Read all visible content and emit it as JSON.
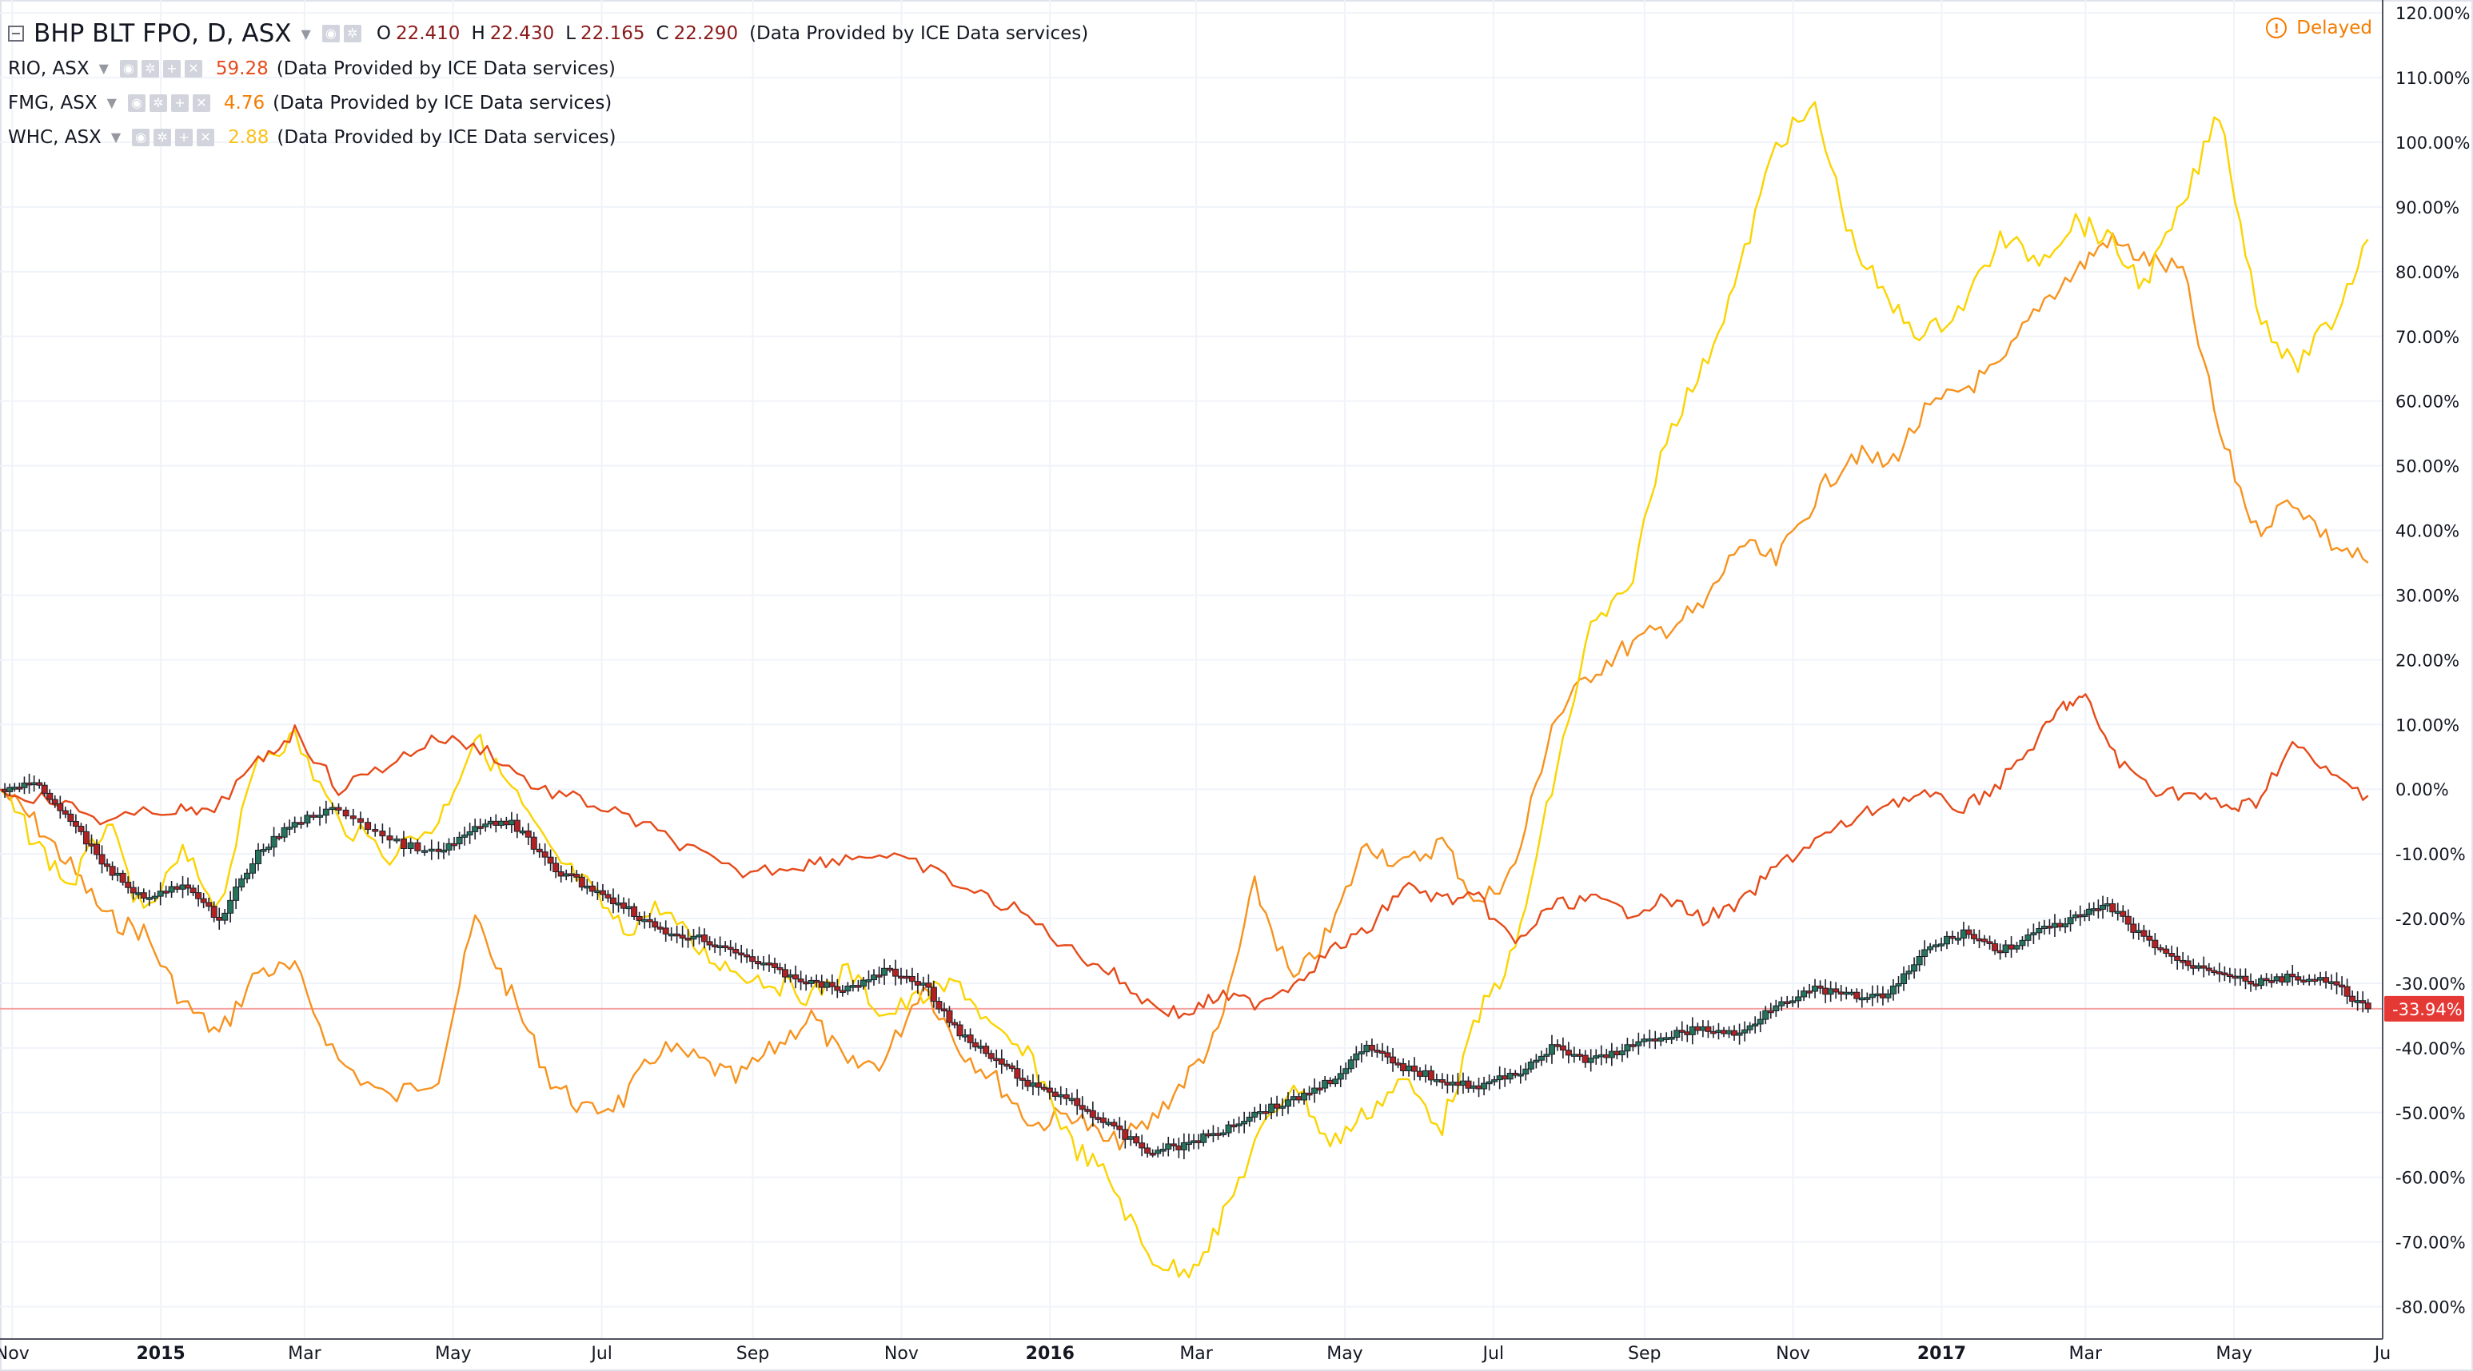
{
  "legend": {
    "main": {
      "title": "BHP BLT FPO, D, ASX",
      "o_label": "O",
      "o": "22.410",
      "h_label": "H",
      "h": "22.430",
      "l_label": "L",
      "l": "22.165",
      "c_label": "C",
      "c": "22.290",
      "source": "(Data Provided by ICE Data services)"
    },
    "rows": [
      {
        "symbol": "RIO, ASX",
        "value": "59.28",
        "color": "#e64a19",
        "source": "(Data Provided by ICE Data services)"
      },
      {
        "symbol": "FMG, ASX",
        "value": "4.76",
        "color": "#f57c00",
        "source": "(Data Provided by ICE Data services)"
      },
      {
        "symbol": "WHC, ASX",
        "value": "2.88",
        "color": "#f9c21a",
        "source": "(Data Provided by ICE Data services)"
      }
    ]
  },
  "delayed_label": "Delayed",
  "price_label": "-33.94%",
  "colors": {
    "rio": "#e64a19",
    "fmg": "#f7931e",
    "whc": "#fbd400",
    "up": "#26735b",
    "down": "#b22222",
    "price_line": "#f4a0a0"
  },
  "chart_data": {
    "type": "line",
    "ylim": [
      -85,
      122
    ],
    "xlim": [
      "2014-10-27",
      "2017-07-01"
    ],
    "y_ticks": [
      "120.00%",
      "110.00%",
      "100.00%",
      "90.00%",
      "80.00%",
      "70.00%",
      "60.00%",
      "50.00%",
      "40.00%",
      "30.00%",
      "20.00%",
      "10.00%",
      "0.00%",
      "-10.00%",
      "-20.00%",
      "-30.00%",
      "-40.00%",
      "-50.00%",
      "-60.00%",
      "-70.00%",
      "-80.00%"
    ],
    "y_tick_values": [
      120,
      110,
      100,
      90,
      80,
      70,
      60,
      50,
      40,
      30,
      20,
      10,
      0,
      -10,
      -20,
      -30,
      -40,
      -50,
      -60,
      -70,
      -80
    ],
    "x_ticks": [
      {
        "label": "Nov",
        "date": "2014-11-01",
        "bold": false
      },
      {
        "label": "2015",
        "date": "2015-01-01",
        "bold": true
      },
      {
        "label": "Mar",
        "date": "2015-03-01",
        "bold": false
      },
      {
        "label": "May",
        "date": "2015-05-01",
        "bold": false
      },
      {
        "label": "Jul",
        "date": "2015-07-01",
        "bold": false
      },
      {
        "label": "Sep",
        "date": "2015-09-01",
        "bold": false
      },
      {
        "label": "Nov",
        "date": "2015-11-01",
        "bold": false
      },
      {
        "label": "2016",
        "date": "2016-01-01",
        "bold": true
      },
      {
        "label": "Mar",
        "date": "2016-03-01",
        "bold": false
      },
      {
        "label": "May",
        "date": "2016-05-01",
        "bold": false
      },
      {
        "label": "Jul",
        "date": "2016-07-01",
        "bold": false
      },
      {
        "label": "Sep",
        "date": "2016-09-01",
        "bold": false
      },
      {
        "label": "Nov",
        "date": "2016-11-01",
        "bold": false
      },
      {
        "label": "2017",
        "date": "2017-01-01",
        "bold": true
      },
      {
        "label": "Mar",
        "date": "2017-03-01",
        "bold": false
      },
      {
        "label": "May",
        "date": "2017-05-01",
        "bold": false
      },
      {
        "label": "Ju",
        "date": "2017-07-01",
        "bold": false
      }
    ],
    "last_value": -33.94,
    "series": [
      {
        "name": "RIO, ASX",
        "key": "rio",
        "x": [
          "2014-10-27",
          "2014-11-20",
          "2014-12-10",
          "2015-01-05",
          "2015-01-20",
          "2015-02-10",
          "2015-02-25",
          "2015-03-15",
          "2015-04-05",
          "2015-04-25",
          "2015-05-15",
          "2015-06-05",
          "2015-06-25",
          "2015-07-15",
          "2015-08-05",
          "2015-08-25",
          "2015-09-15",
          "2015-10-01",
          "2015-10-20",
          "2015-11-10",
          "2015-12-01",
          "2015-12-20",
          "2016-01-10",
          "2016-01-25",
          "2016-02-10",
          "2016-02-25",
          "2016-03-10",
          "2016-03-25",
          "2016-04-10",
          "2016-04-25",
          "2016-05-10",
          "2016-05-25",
          "2016-06-10",
          "2016-06-25",
          "2016-07-10",
          "2016-07-25",
          "2016-08-10",
          "2016-08-25",
          "2016-09-10",
          "2016-09-25",
          "2016-10-10",
          "2016-10-25",
          "2016-11-10",
          "2016-11-25",
          "2016-12-10",
          "2016-12-25",
          "2017-01-10",
          "2017-01-25",
          "2017-02-10",
          "2017-02-20",
          "2017-03-01",
          "2017-03-15",
          "2017-03-30",
          "2017-04-15",
          "2017-04-30",
          "2017-05-10",
          "2017-05-25",
          "2017-06-10",
          "2017-06-25"
        ],
        "y": [
          0,
          -2,
          -5,
          -3,
          -4,
          4,
          9,
          0,
          4,
          8,
          6,
          0,
          -2,
          -5,
          -9,
          -13,
          -12,
          -11,
          -10,
          -12,
          -16,
          -19,
          -25,
          -28,
          -33,
          -35,
          -32,
          -33,
          -30,
          -25,
          -22,
          -15,
          -17,
          -17,
          -24,
          -18,
          -17,
          -19,
          -17,
          -20,
          -18,
          -12,
          -8,
          -5,
          -2,
          -1,
          -3,
          1,
          8,
          13,
          14,
          4,
          0,
          -1,
          -3,
          -2,
          7,
          2,
          -1
        ]
      },
      {
        "name": "FMG, ASX",
        "key": "fmg",
        "x": [
          "2014-10-27",
          "2014-11-10",
          "2014-11-25",
          "2014-12-10",
          "2014-12-25",
          "2015-01-10",
          "2015-01-25",
          "2015-02-10",
          "2015-02-25",
          "2015-03-15",
          "2015-04-05",
          "2015-04-25",
          "2015-05-10",
          "2015-05-25",
          "2015-06-10",
          "2015-06-25",
          "2015-07-10",
          "2015-07-25",
          "2015-08-10",
          "2015-08-25",
          "2015-09-10",
          "2015-09-25",
          "2015-10-10",
          "2015-10-25",
          "2015-11-10",
          "2015-11-25",
          "2015-12-10",
          "2015-12-25",
          "2016-01-10",
          "2016-01-25",
          "2016-02-10",
          "2016-02-25",
          "2016-03-10",
          "2016-03-25",
          "2016-04-10",
          "2016-04-25",
          "2016-05-10",
          "2016-05-25",
          "2016-06-10",
          "2016-06-25",
          "2016-07-10",
          "2016-07-25",
          "2016-08-10",
          "2016-08-25",
          "2016-09-10",
          "2016-09-25",
          "2016-10-10",
          "2016-10-25",
          "2016-11-10",
          "2016-11-25",
          "2016-12-10",
          "2016-12-25",
          "2017-01-10",
          "2017-01-25",
          "2017-02-10",
          "2017-02-25",
          "2017-03-10",
          "2017-03-25",
          "2017-04-10",
          "2017-04-25",
          "2017-05-10",
          "2017-05-25",
          "2017-06-10",
          "2017-06-25"
        ],
        "y": [
          0,
          -5,
          -12,
          -20,
          -22,
          -33,
          -38,
          -28,
          -28,
          -42,
          -48,
          -44,
          -20,
          -32,
          -45,
          -50,
          -48,
          -40,
          -42,
          -45,
          -40,
          -35,
          -43,
          -42,
          -30,
          -40,
          -45,
          -52,
          -50,
          -55,
          -52,
          -45,
          -38,
          -15,
          -30,
          -22,
          -8,
          -12,
          -8,
          -18,
          -12,
          10,
          18,
          22,
          25,
          28,
          38,
          35,
          45,
          52,
          50,
          58,
          62,
          65,
          75,
          80,
          85,
          82,
          80,
          55,
          40,
          45,
          38,
          35
        ]
      },
      {
        "name": "WHC, ASX",
        "key": "whc",
        "x": [
          "2014-10-27",
          "2014-11-10",
          "2014-11-25",
          "2014-12-10",
          "2014-12-25",
          "2015-01-10",
          "2015-01-25",
          "2015-02-10",
          "2015-02-25",
          "2015-03-15",
          "2015-04-05",
          "2015-04-25",
          "2015-05-10",
          "2015-05-25",
          "2015-06-10",
          "2015-06-25",
          "2015-07-10",
          "2015-07-25",
          "2015-08-10",
          "2015-08-25",
          "2015-09-10",
          "2015-09-25",
          "2015-10-10",
          "2015-10-25",
          "2015-11-10",
          "2015-11-25",
          "2015-12-10",
          "2015-12-25",
          "2016-01-10",
          "2016-01-25",
          "2016-02-10",
          "2016-02-25",
          "2016-03-10",
          "2016-03-25",
          "2016-04-10",
          "2016-04-25",
          "2016-05-10",
          "2016-05-25",
          "2016-06-10",
          "2016-06-25",
          "2016-07-10",
          "2016-07-25",
          "2016-08-10",
          "2016-08-25",
          "2016-09-10",
          "2016-09-25",
          "2016-10-10",
          "2016-10-25",
          "2016-11-10",
          "2016-11-25",
          "2016-12-10",
          "2016-12-25",
          "2017-01-10",
          "2017-01-25",
          "2017-02-10",
          "2017-02-25",
          "2017-03-10",
          "2017-03-25",
          "2017-04-10",
          "2017-04-25",
          "2017-05-10",
          "2017-05-25",
          "2017-06-10",
          "2017-06-25"
        ],
        "y": [
          0,
          -8,
          -15,
          -5,
          -20,
          -10,
          -18,
          5,
          8,
          -5,
          -10,
          -5,
          8,
          0,
          -10,
          -15,
          -22,
          -18,
          -25,
          -28,
          -30,
          -32,
          -28,
          -35,
          -32,
          -30,
          -38,
          -42,
          -55,
          -60,
          -72,
          -75,
          -68,
          -55,
          -45,
          -55,
          -50,
          -45,
          -52,
          -35,
          -25,
          0,
          25,
          30,
          55,
          65,
          80,
          100,
          105,
          85,
          75,
          70,
          75,
          85,
          82,
          88,
          85,
          78,
          90,
          105,
          75,
          65,
          72,
          85
        ]
      },
      {
        "name": "BHP BLT FPO, D, ASX",
        "key": "bhp",
        "x": [
          "2014-10-27",
          "2014-11-10",
          "2014-11-25",
          "2014-12-10",
          "2014-12-25",
          "2015-01-10",
          "2015-01-25",
          "2015-02-10",
          "2015-02-25",
          "2015-03-15",
          "2015-04-05",
          "2015-04-25",
          "2015-05-10",
          "2015-05-25",
          "2015-06-10",
          "2015-06-25",
          "2015-07-10",
          "2015-07-25",
          "2015-08-10",
          "2015-08-25",
          "2015-09-10",
          "2015-09-25",
          "2015-10-10",
          "2015-10-25",
          "2015-11-10",
          "2015-11-25",
          "2015-12-10",
          "2015-12-25",
          "2016-01-10",
          "2016-01-25",
          "2016-02-10",
          "2016-02-25",
          "2016-03-10",
          "2016-03-25",
          "2016-04-10",
          "2016-04-25",
          "2016-05-10",
          "2016-05-25",
          "2016-06-10",
          "2016-06-25",
          "2016-07-10",
          "2016-07-25",
          "2016-08-10",
          "2016-08-25",
          "2016-09-10",
          "2016-09-25",
          "2016-10-10",
          "2016-10-25",
          "2016-11-10",
          "2016-11-25",
          "2016-12-10",
          "2016-12-25",
          "2017-01-10",
          "2017-01-25",
          "2017-02-10",
          "2017-02-25",
          "2017-03-10",
          "2017-03-25",
          "2017-04-10",
          "2017-04-25",
          "2017-05-10",
          "2017-05-25",
          "2017-06-10",
          "2017-06-25"
        ],
        "y": [
          0,
          1,
          -5,
          -12,
          -17,
          -15,
          -20,
          -10,
          -5,
          -3,
          -8,
          -10,
          -6,
          -5,
          -12,
          -15,
          -18,
          -22,
          -23,
          -25,
          -28,
          -30,
          -31,
          -28,
          -30,
          -38,
          -42,
          -46,
          -48,
          -52,
          -56,
          -55,
          -53,
          -50,
          -48,
          -45,
          -40,
          -43,
          -45,
          -46,
          -44,
          -40,
          -42,
          -40,
          -38,
          -37,
          -38,
          -33,
          -31,
          -32,
          -32,
          -25,
          -22,
          -25,
          -22,
          -20,
          -18,
          -23,
          -27,
          -28,
          -30,
          -29,
          -30,
          -33.94
        ]
      }
    ]
  }
}
